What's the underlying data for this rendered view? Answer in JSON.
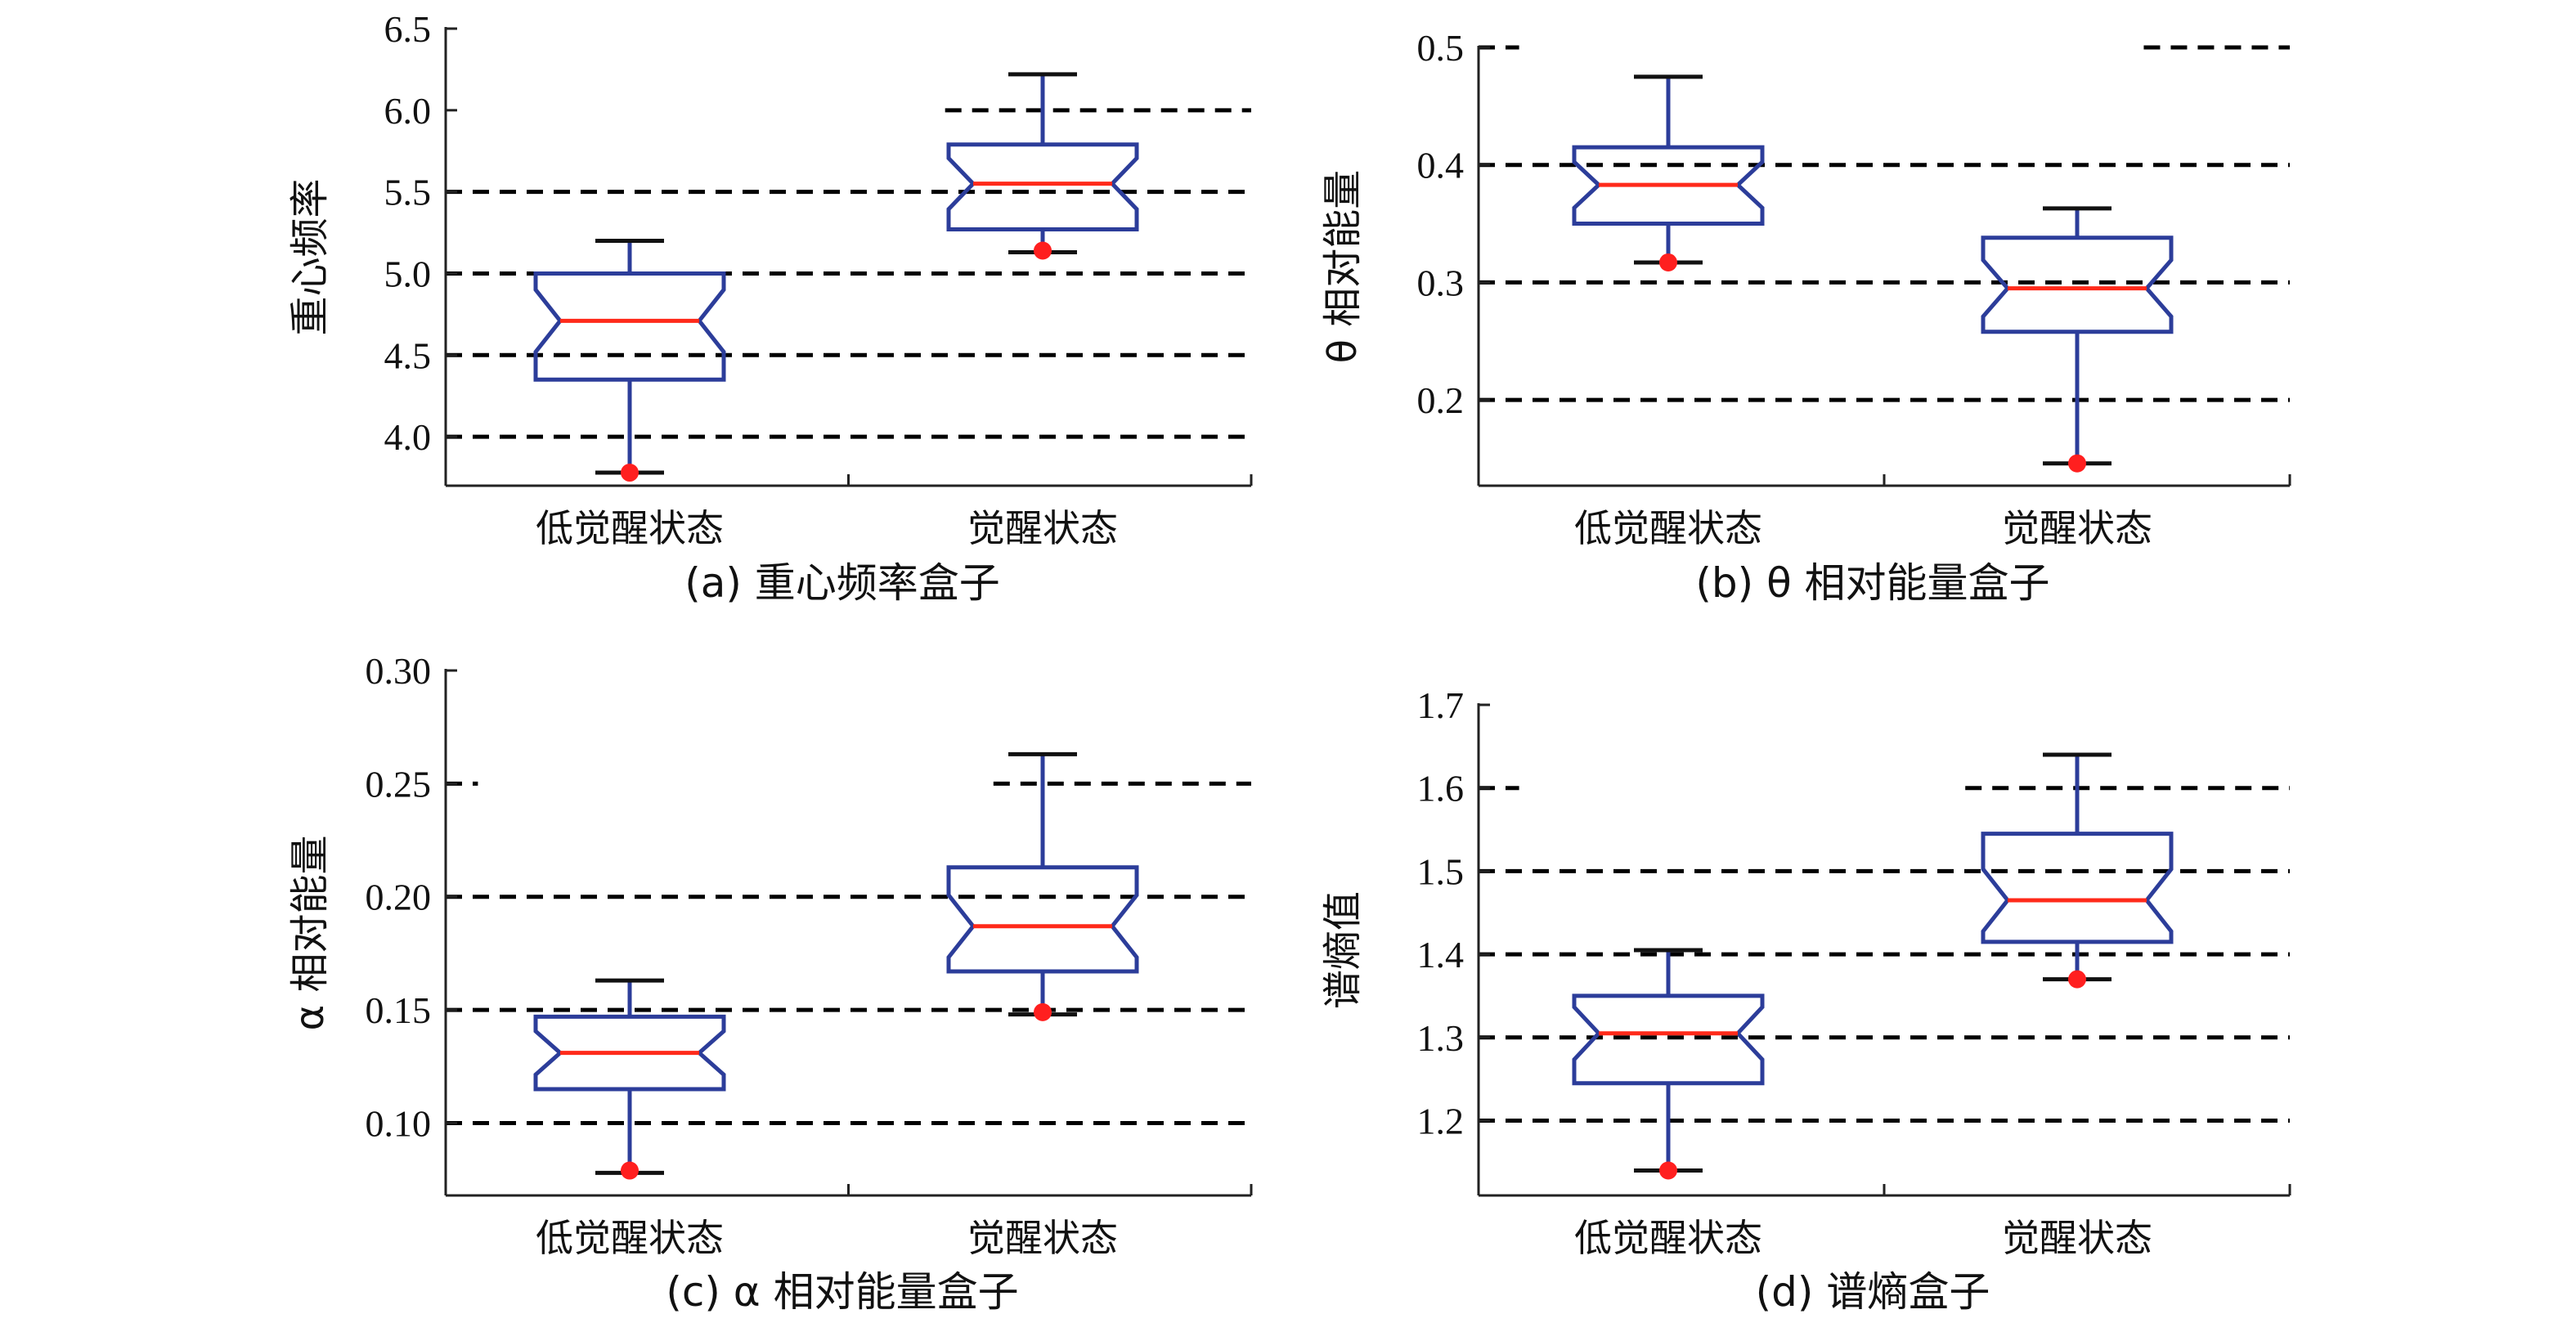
{
  "chart_data": [
    {
      "type": "boxplot",
      "caption": "(a) 重心频率盒子",
      "ylabel": "重心频率",
      "categories": [
        "低觉醒状态",
        "觉醒状态"
      ],
      "ylim": [
        3.7,
        6.5
      ],
      "yticks": [
        4.0,
        4.5,
        5.0,
        5.5,
        6.0,
        6.5
      ],
      "ytick_labels": [
        "4.0",
        "4.5",
        "5.0",
        "5.5",
        "6.0",
        "6.5"
      ],
      "grid_lines": [
        {
          "y": 4.0,
          "from": 0.0,
          "to": 1.0
        },
        {
          "y": 4.5,
          "from": 0.0,
          "to": 1.0
        },
        {
          "y": 5.0,
          "from": 0.0,
          "to": 1.0
        },
        {
          "y": 5.5,
          "from": 0.0,
          "to": 1.0
        },
        {
          "y": 6.0,
          "from": 0.62,
          "to": 1.0
        }
      ],
      "boxes": [
        {
          "category": "低觉醒状态",
          "q1": 4.35,
          "median": 4.71,
          "q3": 5.0,
          "lower_whisker": 3.78,
          "upper_whisker": 5.2,
          "outliers": [
            3.78
          ]
        },
        {
          "category": "觉醒状态",
          "q1": 5.27,
          "median": 5.55,
          "q3": 5.79,
          "lower_whisker": 5.13,
          "upper_whisker": 6.22,
          "outliers": [
            5.14
          ]
        }
      ]
    },
    {
      "type": "boxplot",
      "caption": "(b) θ 相对能量盒子",
      "ylabel": "θ 相对能量",
      "categories": [
        "低觉醒状态",
        "觉醒状态"
      ],
      "ylim": [
        0.127,
        0.5
      ],
      "yticks": [
        0.2,
        0.3,
        0.4,
        0.5
      ],
      "ytick_labels": [
        "0.2",
        "0.3",
        "0.4",
        "0.5"
      ],
      "grid_lines": [
        {
          "y": 0.2,
          "from": 0.0,
          "to": 1.0
        },
        {
          "y": 0.3,
          "from": 0.0,
          "to": 1.0
        },
        {
          "y": 0.4,
          "from": 0.0,
          "to": 1.0
        },
        {
          "y": 0.5,
          "from": 0.0,
          "to": 0.05
        },
        {
          "y": 0.5,
          "from": 0.82,
          "to": 1.0
        }
      ],
      "boxes": [
        {
          "category": "低觉醒状态",
          "q1": 0.35,
          "median": 0.383,
          "q3": 0.415,
          "lower_whisker": 0.317,
          "upper_whisker": 0.475,
          "outliers": [
            0.317
          ]
        },
        {
          "category": "觉醒状态",
          "q1": 0.258,
          "median": 0.295,
          "q3": 0.338,
          "lower_whisker": 0.146,
          "upper_whisker": 0.363,
          "outliers": [
            0.146
          ]
        }
      ]
    },
    {
      "type": "boxplot",
      "caption": "(c) α 相对能量盒子",
      "ylabel": "α 相对能量",
      "categories": [
        "低觉醒状态",
        "觉醒状态"
      ],
      "ylim": [
        0.068,
        0.3
      ],
      "yticks": [
        0.1,
        0.15,
        0.2,
        0.25,
        0.3
      ],
      "ytick_labels": [
        "0.10",
        "0.15",
        "0.20",
        "0.25",
        "0.30"
      ],
      "grid_lines": [
        {
          "y": 0.1,
          "from": 0.0,
          "to": 1.0
        },
        {
          "y": 0.15,
          "from": 0.0,
          "to": 1.0
        },
        {
          "y": 0.2,
          "from": 0.0,
          "to": 1.0
        },
        {
          "y": 0.25,
          "from": 0.0,
          "to": 0.04
        },
        {
          "y": 0.25,
          "from": 0.68,
          "to": 1.0
        }
      ],
      "boxes": [
        {
          "category": "低觉醒状态",
          "q1": 0.115,
          "median": 0.131,
          "q3": 0.147,
          "lower_whisker": 0.078,
          "upper_whisker": 0.163,
          "outliers": [
            0.079
          ]
        },
        {
          "category": "觉醒状态",
          "q1": 0.167,
          "median": 0.187,
          "q3": 0.213,
          "lower_whisker": 0.148,
          "upper_whisker": 0.263,
          "outliers": [
            0.149
          ]
        }
      ]
    },
    {
      "type": "boxplot",
      "caption": "(d) 谱熵盒子",
      "ylabel": "谱熵值",
      "categories": [
        "低觉醒状态",
        "觉醒状态"
      ],
      "ylim": [
        1.11,
        1.7
      ],
      "yticks": [
        1.2,
        1.3,
        1.4,
        1.5,
        1.6,
        1.7
      ],
      "ytick_labels": [
        "1.2",
        "1.3",
        "1.4",
        "1.5",
        "1.6",
        "1.7"
      ],
      "grid_lines": [
        {
          "y": 1.2,
          "from": 0.0,
          "to": 1.0
        },
        {
          "y": 1.3,
          "from": 0.0,
          "to": 1.0
        },
        {
          "y": 1.4,
          "from": 0.0,
          "to": 1.0
        },
        {
          "y": 1.5,
          "from": 0.0,
          "to": 1.0
        },
        {
          "y": 1.6,
          "from": 0.0,
          "to": 0.05
        },
        {
          "y": 1.6,
          "from": 0.6,
          "to": 1.0
        }
      ],
      "boxes": [
        {
          "category": "低觉醒状态",
          "q1": 1.245,
          "median": 1.305,
          "q3": 1.35,
          "lower_whisker": 1.14,
          "upper_whisker": 1.405,
          "outliers": [
            1.14
          ]
        },
        {
          "category": "觉醒状态",
          "q1": 1.415,
          "median": 1.465,
          "q3": 1.545,
          "lower_whisker": 1.37,
          "upper_whisker": 1.64,
          "outliers": [
            1.37
          ]
        }
      ]
    }
  ]
}
